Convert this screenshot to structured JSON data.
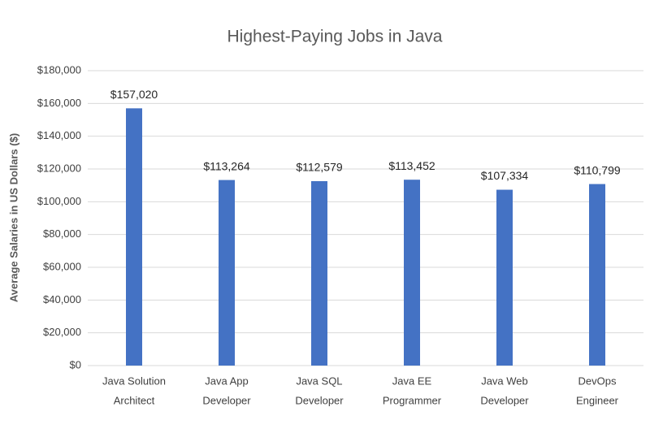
{
  "chart_data": {
    "type": "bar",
    "title": "Highest-Paying Jobs in Java",
    "y_axis_label": "Average Salaries in US Dollars ($)",
    "categories": [
      [
        "Java Solution",
        "Architect"
      ],
      [
        "Java App",
        "Developer"
      ],
      [
        "Java SQL",
        "Developer"
      ],
      [
        "Java EE",
        "Programmer"
      ],
      [
        "Java Web",
        "Developer"
      ],
      [
        "DevOps",
        "Engineer"
      ]
    ],
    "values": [
      157020,
      113264,
      112579,
      113452,
      107334,
      110799
    ],
    "value_labels": [
      "$157,020",
      "$113,264",
      "$112,579",
      "$113,452",
      "$107,334",
      "$110,799"
    ],
    "color": "#4472c4",
    "ylim": [
      0,
      180000
    ],
    "yticks": [
      {
        "value": 0,
        "label": "$0"
      },
      {
        "value": 20000,
        "label": "$20,000"
      },
      {
        "value": 40000,
        "label": "$40,000"
      },
      {
        "value": 60000,
        "label": "$60,000"
      },
      {
        "value": 80000,
        "label": "$80,000"
      },
      {
        "value": 100000,
        "label": "$100,000"
      },
      {
        "value": 120000,
        "label": "$120,000"
      },
      {
        "value": 140000,
        "label": "$140,000"
      },
      {
        "value": 160000,
        "label": "$160,000"
      },
      {
        "value": 180000,
        "label": "$180,000"
      }
    ],
    "grid": true
  }
}
